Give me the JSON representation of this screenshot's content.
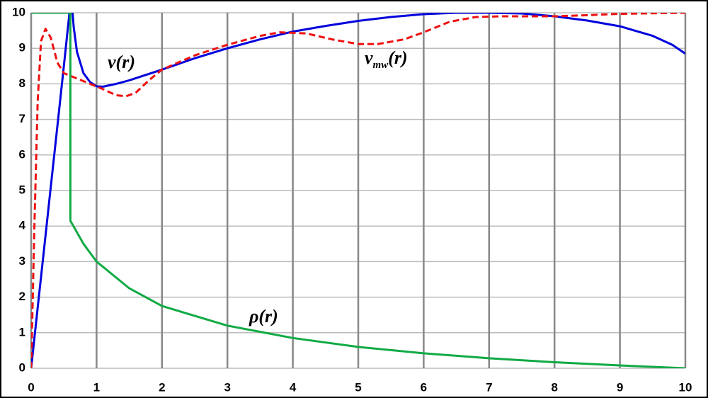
{
  "chart_data": {
    "type": "line",
    "xlim": [
      0,
      10
    ],
    "xticks": [
      0,
      1,
      2,
      3,
      4,
      5,
      6,
      7,
      8,
      9,
      10
    ],
    "ylim": [
      0,
      10
    ],
    "yticks": [
      0,
      1,
      2,
      3,
      4,
      5,
      6,
      7,
      8,
      9,
      10
    ],
    "grid": true,
    "series": [
      {
        "name": "v(r)",
        "color": "#0000dd",
        "dash": false,
        "x": [
          0,
          0.1,
          0.2,
          0.3,
          0.4,
          0.5,
          0.58,
          0.6,
          0.62,
          0.65,
          0.7,
          0.8,
          0.9,
          1.0,
          1.1,
          1.3,
          1.5,
          2,
          2.5,
          3,
          3.5,
          4,
          4.5,
          5,
          5.5,
          6,
          6.5,
          7,
          7.5,
          8,
          8.5,
          9,
          9.5,
          9.8,
          10
        ],
        "values": [
          0,
          1.7,
          3.4,
          5.1,
          6.8,
          8.5,
          9.9,
          10.5,
          10.3,
          9.6,
          8.9,
          8.3,
          8.05,
          7.93,
          7.92,
          8.0,
          8.1,
          8.4,
          8.72,
          9.0,
          9.25,
          9.47,
          9.63,
          9.77,
          9.88,
          9.96,
          10.0,
          10.0,
          9.98,
          9.9,
          9.78,
          9.62,
          9.35,
          9.1,
          8.85
        ]
      },
      {
        "name": "v",
        "name_sub": "mw",
        "name_tail": "(r)",
        "color": "#ee1111",
        "dash": true,
        "x": [
          0,
          0.05,
          0.1,
          0.15,
          0.22,
          0.3,
          0.4,
          0.5,
          0.7,
          0.9,
          1.1,
          1.3,
          1.45,
          1.6,
          1.8,
          2,
          2.5,
          3,
          3.5,
          3.8,
          4.2,
          4.6,
          5,
          5.3,
          5.7,
          6,
          6.4,
          6.8,
          7.2,
          8,
          8.5,
          9,
          10
        ],
        "values": [
          0,
          4,
          7.5,
          9.2,
          9.55,
          9.3,
          8.6,
          8.3,
          8.15,
          8.0,
          7.85,
          7.68,
          7.65,
          7.75,
          8.1,
          8.4,
          8.8,
          9.1,
          9.35,
          9.45,
          9.42,
          9.25,
          9.12,
          9.12,
          9.25,
          9.45,
          9.75,
          9.88,
          9.9,
          9.9,
          9.93,
          9.97,
          10
        ]
      },
      {
        "name": "ρ(r)",
        "color": "#11aa44",
        "dash": false,
        "x": [
          0,
          0.6,
          0.6,
          0.8,
          1,
          1.5,
          2,
          3,
          4,
          5,
          6,
          7,
          8,
          9,
          10
        ],
        "values": [
          10,
          10,
          4.15,
          3.5,
          3.0,
          2.25,
          1.75,
          1.2,
          0.85,
          0.6,
          0.42,
          0.28,
          0.17,
          0.08,
          0
        ]
      }
    ]
  }
}
